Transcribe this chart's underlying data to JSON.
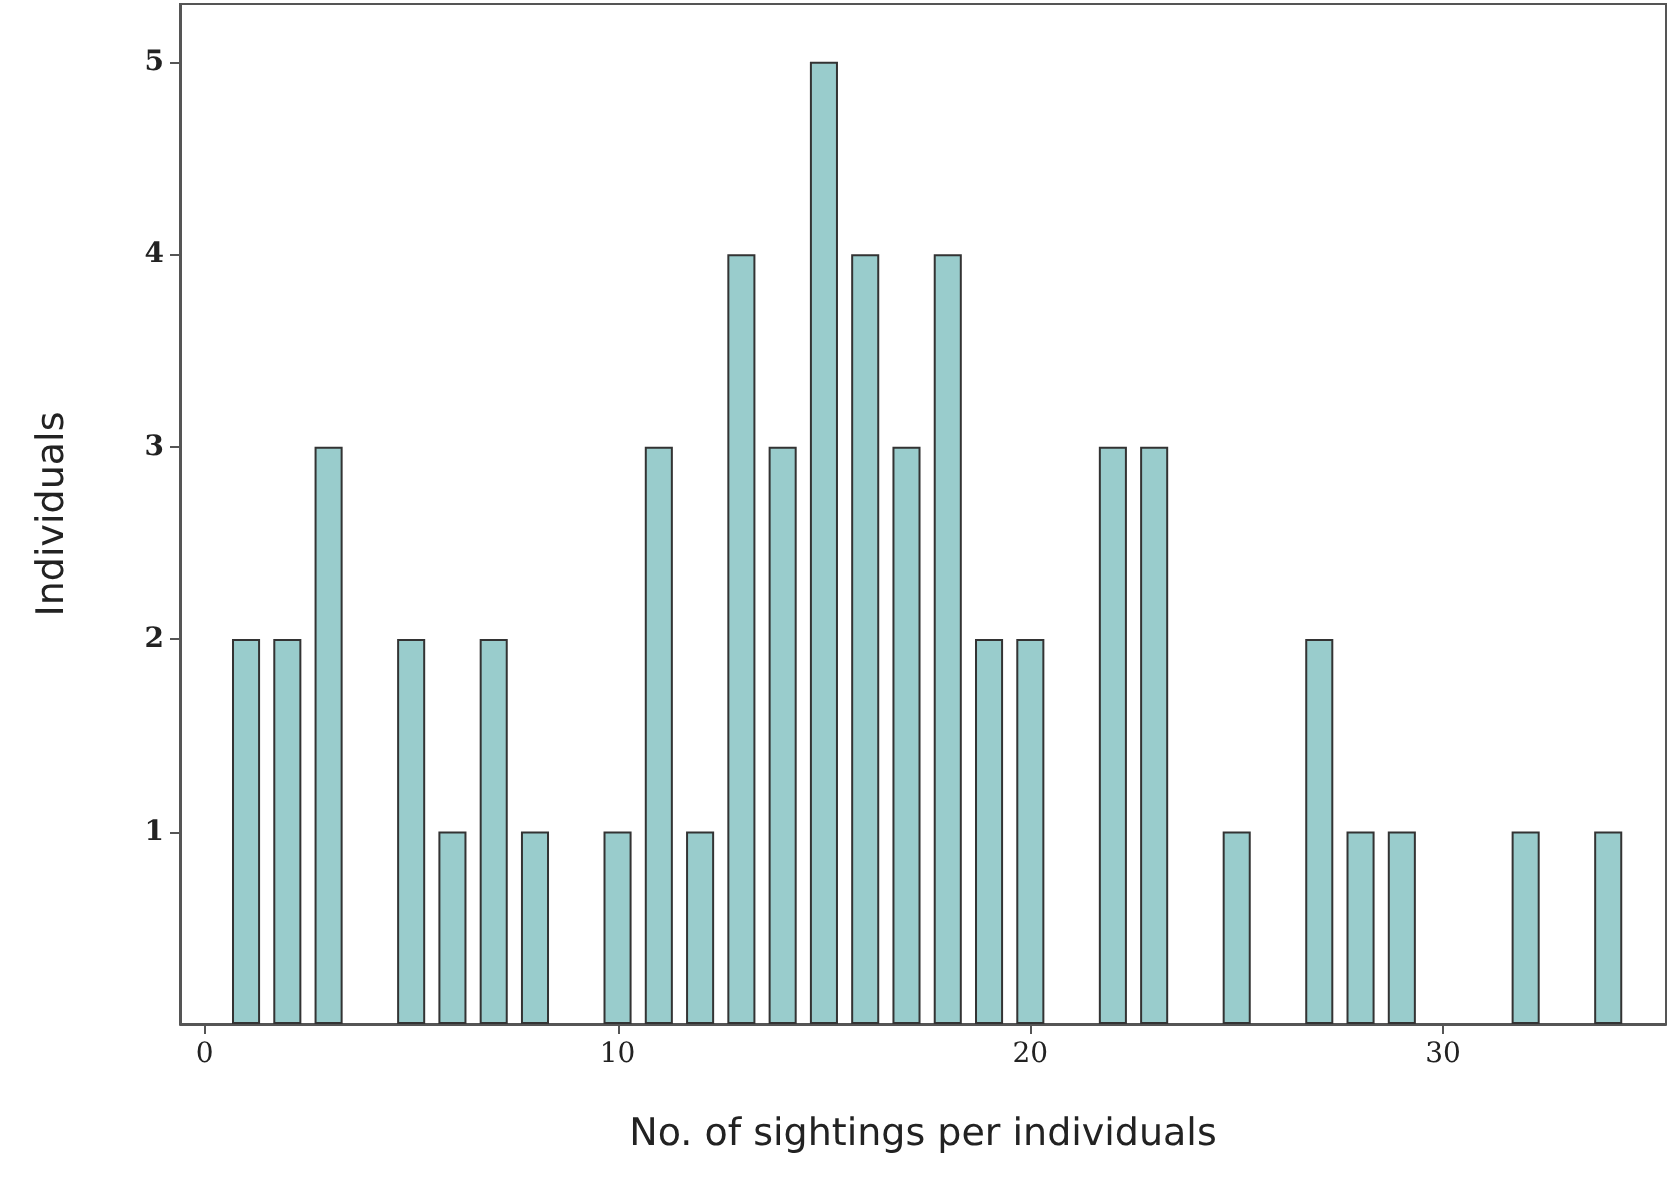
{
  "chart_data": {
    "type": "bar",
    "xlabel": "No. of sightings per individuals",
    "ylabel": "Individuals",
    "x": [
      1,
      2,
      3,
      5,
      6,
      7,
      8,
      10,
      11,
      12,
      13,
      14,
      15,
      16,
      17,
      18,
      19,
      20,
      22,
      23,
      25,
      27,
      28,
      29,
      32,
      34
    ],
    "values": [
      2,
      2,
      3,
      2,
      1,
      2,
      1,
      1,
      3,
      1,
      4,
      3,
      5,
      4,
      3,
      4,
      2,
      2,
      3,
      3,
      1,
      2,
      1,
      1,
      1,
      1
    ],
    "color": "#99cccc",
    "xlim": [
      -0.6,
      35.4
    ],
    "xticks": [
      0,
      10,
      20,
      30
    ],
    "ylim": [
      0,
      5.3
    ],
    "yticks": [
      1,
      2,
      3,
      4,
      5
    ],
    "grid": false
  }
}
